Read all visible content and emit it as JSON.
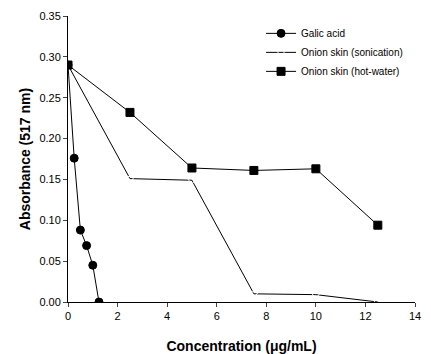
{
  "chart_data": {
    "type": "line",
    "x_label": "Concentration (μg/mL)",
    "y_label": "Absorbance (517 nm)",
    "xlim": [
      0,
      14
    ],
    "xticks": [
      0,
      2,
      4,
      6,
      8,
      10,
      12,
      14
    ],
    "ylim": [
      0,
      0.35
    ],
    "yticks": [
      {
        "value": 0,
        "label": "0.00"
      },
      0.05,
      {
        "value": 0.1,
        "label": "0.10"
      },
      0.15,
      {
        "value": 0.2,
        "label": "0.20"
      },
      0.25,
      {
        "value": 0.3,
        "label": "0.30"
      },
      0.35
    ],
    "grid": false,
    "legend": "top-right",
    "series": [
      {
        "name": "Galic acid",
        "color": "#000000",
        "marker": "circle",
        "x": [
          0,
          0.25,
          0.5,
          0.75,
          1.0,
          1.25
        ],
        "values": [
          0.29,
          0.176,
          0.088,
          0.069,
          0.045,
          0.0
        ]
      },
      {
        "name": "Onion skin (sonication)",
        "color": "#000000",
        "marker": "triangle-down-open",
        "x": [
          0,
          2.5,
          5,
          7.5,
          10,
          12.5
        ],
        "values": [
          0.29,
          0.151,
          0.149,
          0.01,
          0.009,
          0.0
        ]
      },
      {
        "name": "Onion skin (hot-water)",
        "color": "#000000",
        "marker": "square",
        "x": [
          0,
          2.5,
          5,
          7.5,
          10,
          12.5
        ],
        "values": [
          0.29,
          0.232,
          0.164,
          0.161,
          0.163,
          0.094
        ]
      }
    ]
  }
}
